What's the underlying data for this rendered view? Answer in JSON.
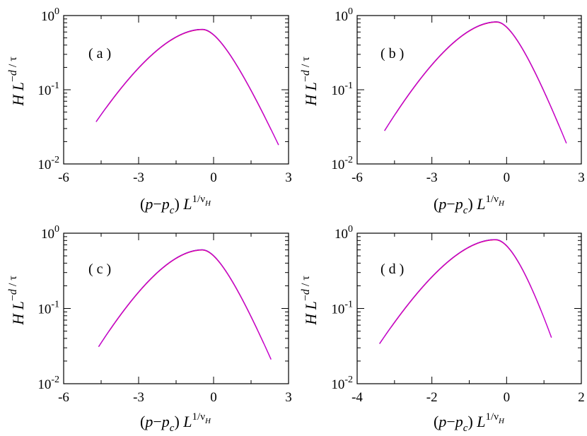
{
  "figure": {
    "xlabel_parts": [
      "(",
      "p",
      "−",
      "p",
      "c",
      ") ",
      "L",
      "1/",
      "ν",
      "H"
    ],
    "ylabel_parts": [
      "H",
      " ",
      "L",
      "−",
      "d",
      " / ",
      "τ"
    ],
    "colors": {
      "axis": "#000000",
      "series": [
        "#000000",
        "#7f7f7f",
        "#ff0000",
        "#1f1fcf",
        "#cc00cc"
      ]
    }
  },
  "chart_data": [
    {
      "type": "line",
      "panel_label": "( a )",
      "xlim": [
        -6,
        3
      ],
      "xticks": [
        -6,
        -3,
        0,
        3
      ],
      "xtick_labels": [
        "-6",
        "-3",
        "0",
        "3"
      ],
      "yscale": "log",
      "ylim": [
        0.01,
        1
      ],
      "ytick_labels": [
        {
          "base": "10",
          "exp": "0"
        },
        {
          "base": "10",
          "exp": "-1"
        },
        {
          "base": "10",
          "exp": "-2"
        }
      ],
      "curve": {
        "x_min": -4.7,
        "peak_x": -0.45,
        "peak_y": 0.65,
        "x_max": 2.6,
        "y_left": 0.037,
        "y_right": 0.018,
        "sigma_left": 2.72,
        "sigma_right": 0.94
      }
    },
    {
      "type": "line",
      "panel_label": "( b )",
      "xlim": [
        -6,
        3
      ],
      "xticks": [
        -6,
        -3,
        0,
        3
      ],
      "xtick_labels": [
        "-6",
        "-3",
        "0",
        "3"
      ],
      "yscale": "log",
      "ylim": [
        0.01,
        1
      ],
      "ytick_labels": [
        {
          "base": "10",
          "exp": "0"
        },
        {
          "base": "10",
          "exp": "-1"
        },
        {
          "base": "10",
          "exp": "-2"
        }
      ],
      "curve": {
        "x_min": -4.9,
        "peak_x": -0.4,
        "peak_y": 0.82,
        "x_max": 2.4,
        "y_left": 0.028,
        "y_right": 0.019,
        "sigma_left": 2.5,
        "sigma_right": 0.95
      }
    },
    {
      "type": "line",
      "panel_label": "( c )",
      "xlim": [
        -6,
        3
      ],
      "xticks": [
        -6,
        -3,
        0,
        3
      ],
      "xtick_labels": [
        "-6",
        "-3",
        "0",
        "3"
      ],
      "yscale": "log",
      "ylim": [
        0.01,
        1
      ],
      "ytick_labels": [
        {
          "base": "10",
          "exp": "0"
        },
        {
          "base": "10",
          "exp": "-1"
        },
        {
          "base": "10",
          "exp": "-2"
        }
      ],
      "curve": {
        "x_min": -4.6,
        "peak_x": -0.45,
        "peak_y": 0.6,
        "x_max": 2.3,
        "y_left": 0.031,
        "y_right": 0.021,
        "sigma_left": 2.4,
        "sigma_right": 0.86
      }
    },
    {
      "type": "line",
      "panel_label": "( d )",
      "xlim": [
        -4,
        2
      ],
      "xticks": [
        -4,
        -2,
        0,
        2
      ],
      "xtick_labels": [
        "-4",
        "-2",
        "0",
        "2"
      ],
      "yscale": "log",
      "ylim": [
        0.01,
        1
      ],
      "ytick_labels": [
        {
          "base": "10",
          "exp": "0"
        },
        {
          "base": "10",
          "exp": "-1"
        },
        {
          "base": "10",
          "exp": "-2"
        }
      ],
      "curve": {
        "x_min": -3.4,
        "peak_x": -0.3,
        "peak_y": 0.82,
        "x_max": 1.2,
        "y_left": 0.034,
        "y_right": 0.041,
        "sigma_left": 1.73,
        "sigma_right": 0.57
      }
    }
  ]
}
